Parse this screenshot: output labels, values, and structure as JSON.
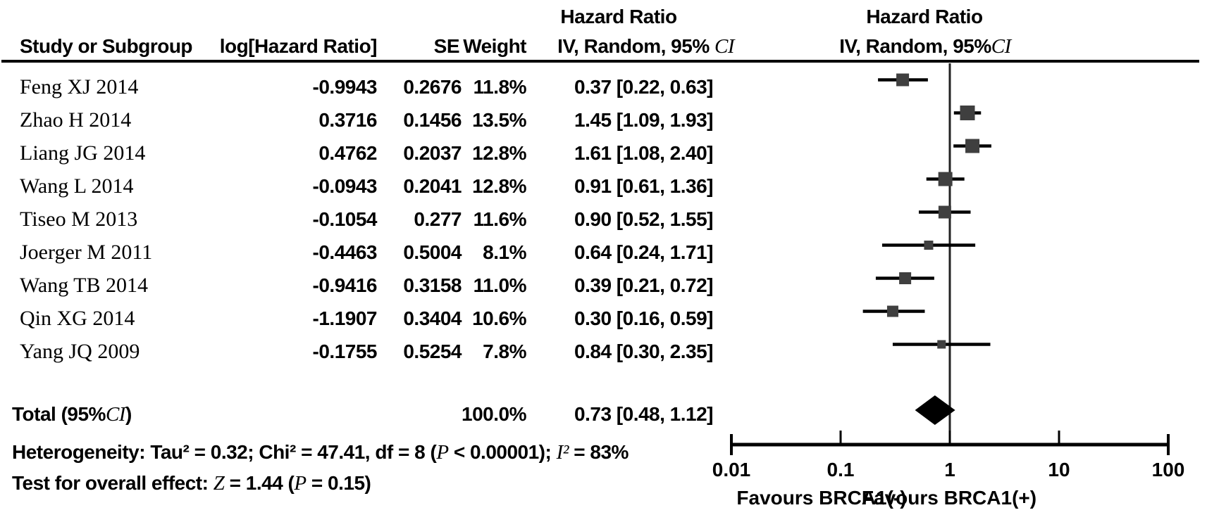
{
  "figure": {
    "left_effect_header": "Hazard Ratio",
    "right_effect_header": "Hazard Ratio",
    "columns": {
      "study": "Study or Subgroup",
      "log_hr": "log[Hazard Ratio]",
      "se": "SE",
      "weight": "Weight",
      "ci_header_parts": [
        {
          "t": "IV, Random, 95% "
        },
        {
          "t": "CI",
          "i": true
        }
      ],
      "right_ci_header_parts": [
        {
          "t": "IV, Random, 95%"
        },
        {
          "t": "CI",
          "i": true
        }
      ]
    },
    "total_label_parts": [
      {
        "t": "Total (95%"
      },
      {
        "t": "CI",
        "i": true
      },
      {
        "t": ")"
      }
    ],
    "heterogeneity_parts": [
      {
        "t": "Heterogeneity: Tau² = 0.32; Chi² = 47.41, df = 8 ("
      },
      {
        "t": "P",
        "i": true
      },
      {
        "t": " < 0.00001); "
      },
      {
        "t": "I²",
        "i": true
      },
      {
        "t": " = 83%"
      }
    ],
    "overall_test_parts": [
      {
        "t": "Test for overall effect: "
      },
      {
        "t": "Z",
        "i": true
      },
      {
        "t": " = 1.44 ("
      },
      {
        "t": "P",
        "i": true
      },
      {
        "t": " = 0.15)"
      }
    ]
  },
  "chart_data": {
    "type": "forest",
    "effect_measure": "Hazard Ratio",
    "model": "IV, Random, 95% CI",
    "x_scale": "log10",
    "x_ticks": [
      0.01,
      0.1,
      1,
      10,
      100
    ],
    "x_tick_labels": [
      "0.01",
      "0.1",
      "1",
      "10",
      "100"
    ],
    "null_line": 1,
    "favours_left": "Favours BRCA1(-)",
    "favours_right": "Favours BRCA1(+)",
    "studies": [
      {
        "name": "Feng XJ 2014",
        "log_hr": "-0.9943",
        "se": "0.2676",
        "weight": "11.8%",
        "weight_pct": 11.8,
        "ci_text": "0.37 [0.22, 0.63]",
        "hr": 0.37,
        "ci_low": 0.22,
        "ci_high": 0.63
      },
      {
        "name": "Zhao H 2014",
        "log_hr": "0.3716",
        "se": "0.1456",
        "weight": "13.5%",
        "weight_pct": 13.5,
        "ci_text": "1.45 [1.09, 1.93]",
        "hr": 1.45,
        "ci_low": 1.09,
        "ci_high": 1.93
      },
      {
        "name": "Liang JG 2014",
        "log_hr": "0.4762",
        "se": "0.2037",
        "weight": "12.8%",
        "weight_pct": 12.8,
        "ci_text": "1.61 [1.08, 2.40]",
        "hr": 1.61,
        "ci_low": 1.08,
        "ci_high": 2.4
      },
      {
        "name": "Wang L 2014",
        "log_hr": "-0.0943",
        "se": "0.2041",
        "weight": "12.8%",
        "weight_pct": 12.8,
        "ci_text": "0.91 [0.61, 1.36]",
        "hr": 0.91,
        "ci_low": 0.61,
        "ci_high": 1.36
      },
      {
        "name": "Tiseo M 2013",
        "log_hr": "-0.1054",
        "se": "0.277",
        "weight": "11.6%",
        "weight_pct": 11.6,
        "ci_text": "0.90 [0.52, 1.55]",
        "hr": 0.9,
        "ci_low": 0.52,
        "ci_high": 1.55
      },
      {
        "name": "Joerger M 2011",
        "log_hr": "-0.4463",
        "se": "0.5004",
        "weight": "8.1%",
        "weight_pct": 8.1,
        "ci_text": "0.64 [0.24, 1.71]",
        "hr": 0.64,
        "ci_low": 0.24,
        "ci_high": 1.71
      },
      {
        "name": "Wang TB 2014",
        "log_hr": "-0.9416",
        "se": "0.3158",
        "weight": "11.0%",
        "weight_pct": 11.0,
        "ci_text": "0.39 [0.21, 0.72]",
        "hr": 0.39,
        "ci_low": 0.21,
        "ci_high": 0.72
      },
      {
        "name": "Qin XG 2014",
        "log_hr": "-1.1907",
        "se": "0.3404",
        "weight": "10.6%",
        "weight_pct": 10.6,
        "ci_text": "0.30 [0.16, 0.59]",
        "hr": 0.3,
        "ci_low": 0.16,
        "ci_high": 0.59
      },
      {
        "name": "Yang JQ 2009",
        "log_hr": "-0.1755",
        "se": "0.5254",
        "weight": "7.8%",
        "weight_pct": 7.8,
        "ci_text": "0.84 [0.30, 2.35]",
        "hr": 0.84,
        "ci_low": 0.3,
        "ci_high": 2.35
      }
    ],
    "total": {
      "weight": "100.0%",
      "ci_text": "0.73 [0.48, 1.12]",
      "hr": 0.73,
      "ci_low": 0.48,
      "ci_high": 1.12
    },
    "colors": {
      "square": "#3f3f3f",
      "line": "#000000",
      "diamond": "#000000",
      "text": "#000000"
    }
  }
}
